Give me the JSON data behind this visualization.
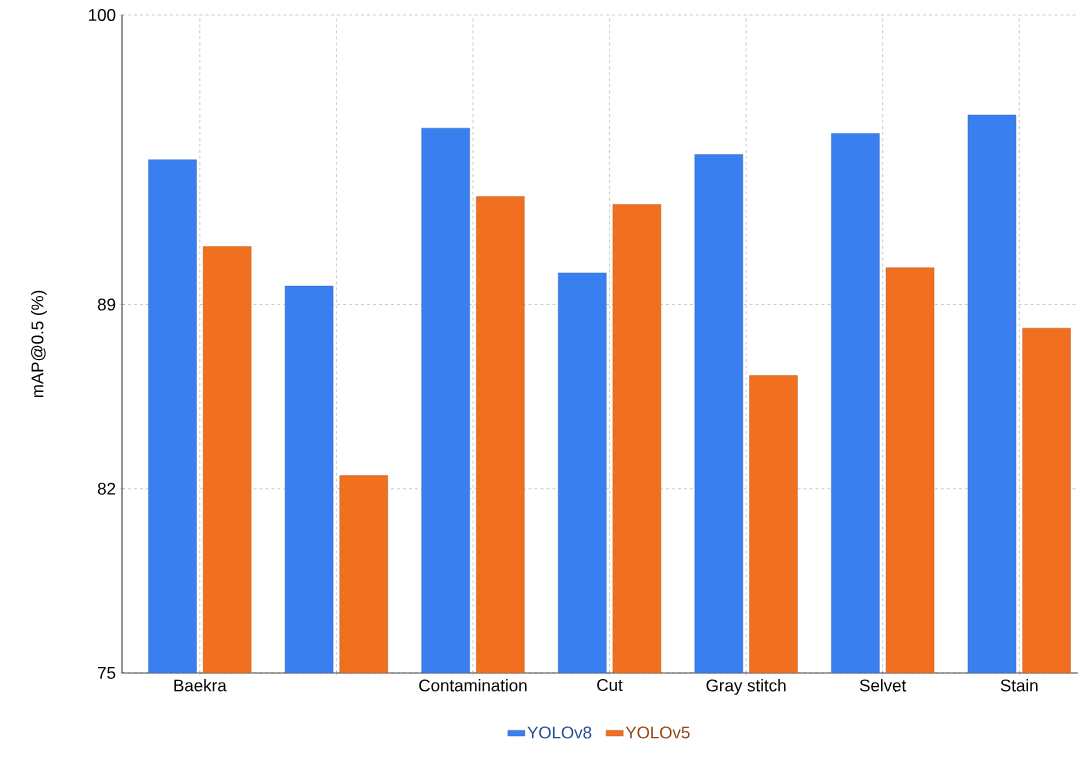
{
  "chart_data": {
    "type": "bar",
    "ylabel": "mAP@0.5 (%)",
    "categories": [
      "Baekra",
      null,
      "Contamination",
      "Cut",
      "Gray stitch",
      "Selvet",
      "Stain"
    ],
    "series": [
      {
        "name": "YOLOv8",
        "color": "#3a7ff0",
        "values": [
          94.5,
          89.7,
          95.7,
          90.2,
          94.7,
          95.5,
          96.2
        ]
      },
      {
        "name": "YOLOv5",
        "color": "#f07020",
        "values": [
          91.2,
          82.5,
          93.1,
          92.8,
          86.3,
          90.4,
          88.1
        ]
      }
    ],
    "ylim": [
      75,
      100
    ],
    "yticks": [
      75,
      82,
      89,
      100
    ],
    "grid": true,
    "legend": "bottom"
  }
}
